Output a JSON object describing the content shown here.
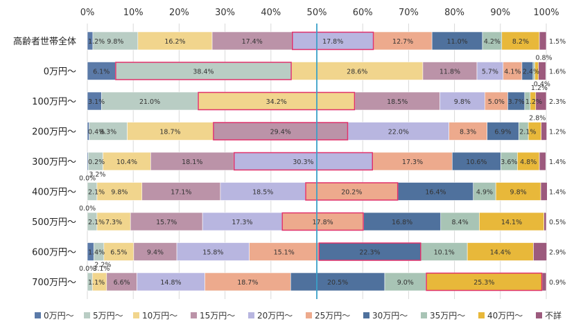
{
  "chart_data": {
    "type": "bar",
    "orientation": "horizontal",
    "stacked": true,
    "percent": true,
    "xlim": [
      0,
      100
    ],
    "xticks": [
      "0%",
      "10%",
      "20%",
      "30%",
      "40%",
      "50%",
      "60%",
      "70%",
      "80%",
      "90%",
      "100%"
    ],
    "categories": [
      "高齢者世帯全体",
      "0万円～",
      "100万円～",
      "200万円～",
      "300万円～",
      "400万円～",
      "500万円～",
      "600万円～",
      "700万円～"
    ],
    "series": [
      {
        "name": "0万円～",
        "color": "#5b7aa8",
        "values": [
          1.2,
          6.1,
          3.1,
          0.4,
          0.2,
          0.0,
          0.0,
          1.4,
          0.0
        ]
      },
      {
        "name": "5万円～",
        "color": "#b9cdc4",
        "values": [
          9.8,
          38.4,
          21.0,
          8.3,
          3.2,
          2.1,
          2.1,
          2.2,
          1.1
        ]
      },
      {
        "name": "10万円～",
        "color": "#f1d58d",
        "values": [
          16.2,
          28.6,
          34.2,
          18.7,
          10.4,
          9.8,
          7.3,
          6.5,
          3.1
        ]
      },
      {
        "name": "15万円～",
        "color": "#bb93a8",
        "values": [
          17.4,
          11.8,
          18.5,
          29.4,
          18.1,
          17.1,
          15.7,
          9.4,
          6.6
        ]
      },
      {
        "name": "20万円～",
        "color": "#b8b6e0",
        "values": [
          17.8,
          5.7,
          9.8,
          22.0,
          30.3,
          18.5,
          17.3,
          15.8,
          14.8
        ]
      },
      {
        "name": "25万円～",
        "color": "#edaa8d",
        "values": [
          12.7,
          4.1,
          5.0,
          8.3,
          17.3,
          20.2,
          17.8,
          15.1,
          18.7
        ]
      },
      {
        "name": "30万円～",
        "color": "#4f719d",
        "values": [
          11.0,
          2.4,
          3.7,
          6.9,
          10.6,
          16.4,
          16.8,
          22.3,
          20.5
        ]
      },
      {
        "name": "35万円～",
        "color": "#a8c4b5",
        "values": [
          4.2,
          0.4,
          1.2,
          2.1,
          3.6,
          4.9,
          8.4,
          10.1,
          9.0
        ]
      },
      {
        "name": "40万円～",
        "color": "#e8b83a",
        "values": [
          8.2,
          0.8,
          1.2,
          2.8,
          4.8,
          9.8,
          14.1,
          14.4,
          25.3
        ]
      },
      {
        "name": "不詳",
        "color": "#9c5a7d",
        "values": [
          1.5,
          1.6,
          2.3,
          1.2,
          1.4,
          1.4,
          0.5,
          2.9,
          0.9
        ]
      }
    ],
    "highlighted_segment_index": [
      4,
      1,
      2,
      3,
      4,
      5,
      5,
      6,
      8
    ],
    "median_reference_line": 50,
    "legend_placement": "bottom",
    "title": "",
    "xlabel": "",
    "ylabel": ""
  }
}
